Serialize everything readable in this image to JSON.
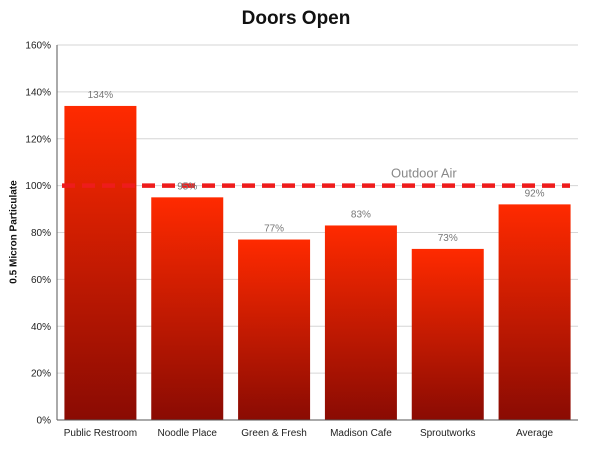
{
  "chart_data": {
    "type": "bar",
    "title": "Doors Open",
    "xlabel": "",
    "ylabel": "0.5 Micron Particulate",
    "categories": [
      "Public Restroom",
      "Noodle Place",
      "Green & Fresh",
      "Madison Cafe",
      "Sproutworks",
      "Average"
    ],
    "values": [
      134,
      95,
      77,
      83,
      73,
      92
    ],
    "data_labels": [
      "134%",
      "95%",
      "77%",
      "83%",
      "73%",
      "92%"
    ],
    "ylim": [
      0,
      160
    ],
    "y_ticks": [
      0,
      20,
      40,
      60,
      80,
      100,
      120,
      140,
      160
    ],
    "y_tick_labels": [
      "0%",
      "20%",
      "40%",
      "60%",
      "80%",
      "100%",
      "120%",
      "140%",
      "160%"
    ],
    "grid": "horizontal",
    "reference_line": {
      "label": "Outdoor Air",
      "value": 100,
      "color": "#ee1c1c",
      "style": "dashed"
    },
    "colors": {
      "bar_top": "#ff2a00",
      "bar_bottom": "#8a0b03",
      "axis": "#555555",
      "gridline": "#d6d6d6",
      "data_label": "#777777",
      "reference_label": "#888888"
    }
  }
}
